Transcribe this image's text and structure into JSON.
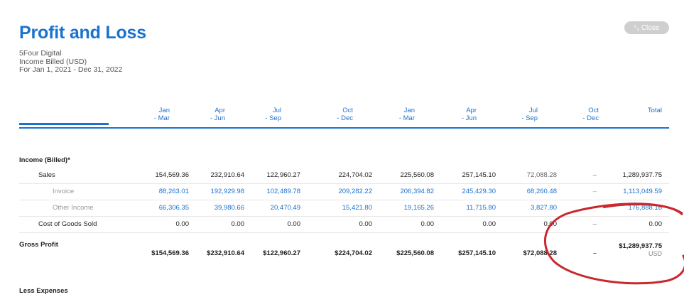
{
  "report": {
    "title": "Profit and Loss",
    "company": "5Four Digital",
    "basis": "Income Billed (USD)",
    "period": "For Jan 1, 2021 - Dec 31, 2022",
    "close_label": "Close",
    "currency": "USD"
  },
  "columns": [
    {
      "l1": "Jan",
      "l2": "- Mar"
    },
    {
      "l1": "Apr",
      "l2": "- Jun"
    },
    {
      "l1": "Jul",
      "l2": "- Sep"
    },
    {
      "l1": "Oct",
      "l2": "- Dec"
    },
    {
      "l1": "Jan",
      "l2": "- Mar"
    },
    {
      "l1": "Apr",
      "l2": "- Jun"
    },
    {
      "l1": "Jul",
      "l2": "- Sep"
    },
    {
      "l1": "Oct",
      "l2": "- Dec"
    },
    {
      "l1": "",
      "l2": "Total"
    }
  ],
  "sections": {
    "income": "Income (Billed)*",
    "expenses": "Less Expenses"
  },
  "rows": {
    "sales": {
      "label": "Sales",
      "values": [
        "154,569.36",
        "232,910.64",
        "122,960.27",
        "224,704.02",
        "225,560.08",
        "257,145.10",
        "72,088.28",
        "–",
        "1,289,937.75"
      ]
    },
    "invoice": {
      "label": "Invoice",
      "values": [
        "88,263.01",
        "192,929.98",
        "102,489.78",
        "209,282.22",
        "206,394.82",
        "245,429.30",
        "68,260.48",
        "–",
        "1,113,049.59"
      ]
    },
    "other_income": {
      "label": "Other Income",
      "values": [
        "66,306.35",
        "39,980.66",
        "20,470.49",
        "15,421.80",
        "19,165.26",
        "11,715.80",
        "3,827.80",
        "–",
        "176,888.16"
      ]
    },
    "cogs": {
      "label": "Cost of Goods Sold",
      "values": [
        "0.00",
        "0.00",
        "0.00",
        "0.00",
        "0.00",
        "0.00",
        "0.00",
        "–",
        "0.00"
      ]
    },
    "gross_profit": {
      "label": "Gross Profit",
      "values": [
        "$154,569.36",
        "$232,910.64",
        "$122,960.27",
        "$224,704.02",
        "$225,560.08",
        "$257,145.10",
        "$72,088.28",
        "–",
        "$1,289,937.75"
      ]
    }
  },
  "colors": {
    "accent": "#1a72cf",
    "annotation": "#c8282e"
  }
}
